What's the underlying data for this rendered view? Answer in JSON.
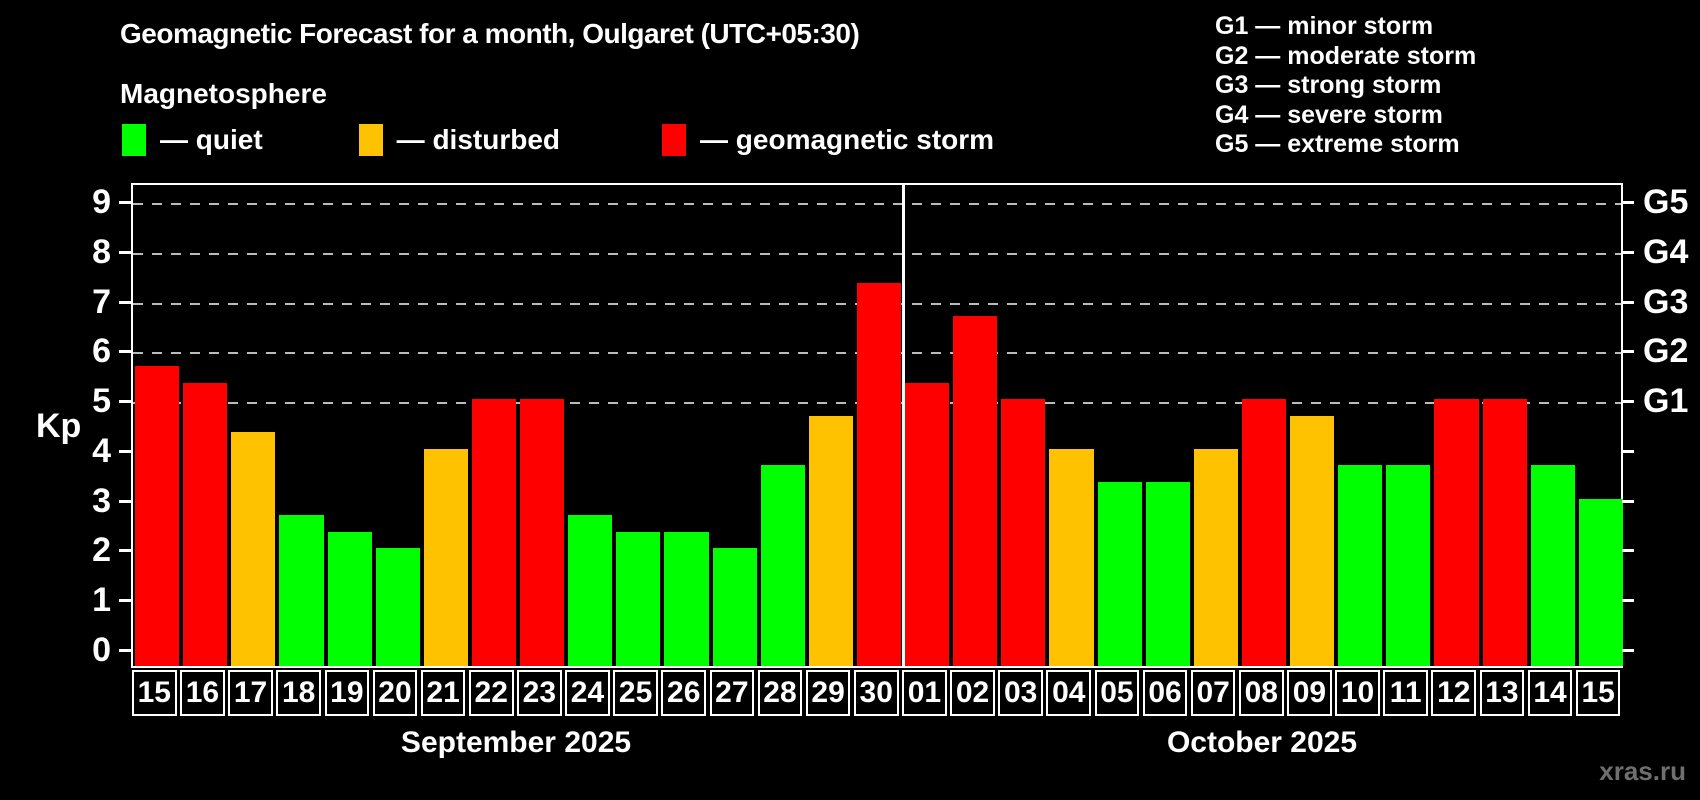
{
  "header": {
    "title": "Geomagnetic Forecast for a month, Oulgaret (UTC+05:30)",
    "subtitle": "Magnetosphere"
  },
  "legend": [
    {
      "key": "quiet",
      "label": "— quiet",
      "color": "#00ff00"
    },
    {
      "key": "disturbed",
      "label": "— disturbed",
      "color": "#ffc200"
    },
    {
      "key": "storm",
      "label": "— geomagnetic storm",
      "color": "#ff0000"
    }
  ],
  "storm_scale": [
    {
      "code": "G1",
      "label": "G1 — minor storm",
      "kp": 5
    },
    {
      "code": "G2",
      "label": "G2 — moderate storm",
      "kp": 6
    },
    {
      "code": "G3",
      "label": "G3 — strong storm",
      "kp": 7
    },
    {
      "code": "G4",
      "label": "G4 — severe storm",
      "kp": 8
    },
    {
      "code": "G5",
      "label": "G5 — extreme storm",
      "kp": 9
    }
  ],
  "watermark": "xras.ru",
  "chart_data": {
    "type": "bar",
    "ylabel": "Kp",
    "ylim": [
      0,
      9
    ],
    "yticks": [
      0,
      1,
      2,
      3,
      4,
      5,
      6,
      7,
      8,
      9
    ],
    "gridlines_at": [
      5,
      6,
      7,
      8,
      9
    ],
    "grid": true,
    "legend_position": "top-left",
    "right_axis": [
      {
        "kp": 5,
        "label": "G1"
      },
      {
        "kp": 6,
        "label": "G2"
      },
      {
        "kp": 7,
        "label": "G3"
      },
      {
        "kp": 8,
        "label": "G4"
      },
      {
        "kp": 9,
        "label": "G5"
      }
    ],
    "months": [
      {
        "label": "September 2025",
        "bars": [
          {
            "day": "15",
            "kp": 5.67,
            "level": "storm"
          },
          {
            "day": "16",
            "kp": 5.33,
            "level": "storm"
          },
          {
            "day": "17",
            "kp": 4.33,
            "level": "disturbed"
          },
          {
            "day": "18",
            "kp": 2.67,
            "level": "quiet"
          },
          {
            "day": "19",
            "kp": 2.33,
            "level": "quiet"
          },
          {
            "day": "20",
            "kp": 2.0,
            "level": "quiet"
          },
          {
            "day": "21",
            "kp": 4.0,
            "level": "disturbed"
          },
          {
            "day": "22",
            "kp": 5.0,
            "level": "storm"
          },
          {
            "day": "23",
            "kp": 5.0,
            "level": "storm"
          },
          {
            "day": "24",
            "kp": 2.67,
            "level": "quiet"
          },
          {
            "day": "25",
            "kp": 2.33,
            "level": "quiet"
          },
          {
            "day": "26",
            "kp": 2.33,
            "level": "quiet"
          },
          {
            "day": "27",
            "kp": 2.0,
            "level": "quiet"
          },
          {
            "day": "28",
            "kp": 3.67,
            "level": "quiet"
          },
          {
            "day": "29",
            "kp": 4.67,
            "level": "disturbed"
          },
          {
            "day": "30",
            "kp": 7.33,
            "level": "storm"
          }
        ]
      },
      {
        "label": "October 2025",
        "bars": [
          {
            "day": "01",
            "kp": 5.33,
            "level": "storm"
          },
          {
            "day": "02",
            "kp": 6.67,
            "level": "storm"
          },
          {
            "day": "03",
            "kp": 5.0,
            "level": "storm"
          },
          {
            "day": "04",
            "kp": 4.0,
            "level": "disturbed"
          },
          {
            "day": "05",
            "kp": 3.33,
            "level": "quiet"
          },
          {
            "day": "06",
            "kp": 3.33,
            "level": "quiet"
          },
          {
            "day": "07",
            "kp": 4.0,
            "level": "disturbed"
          },
          {
            "day": "08",
            "kp": 5.0,
            "level": "storm"
          },
          {
            "day": "09",
            "kp": 4.67,
            "level": "disturbed"
          },
          {
            "day": "10",
            "kp": 3.67,
            "level": "quiet"
          },
          {
            "day": "11",
            "kp": 3.67,
            "level": "quiet"
          },
          {
            "day": "12",
            "kp": 5.0,
            "level": "storm"
          },
          {
            "day": "13",
            "kp": 5.0,
            "level": "storm"
          },
          {
            "day": "14",
            "kp": 3.67,
            "level": "quiet"
          },
          {
            "day": "15",
            "kp": 3.0,
            "level": "quiet"
          }
        ]
      }
    ]
  }
}
